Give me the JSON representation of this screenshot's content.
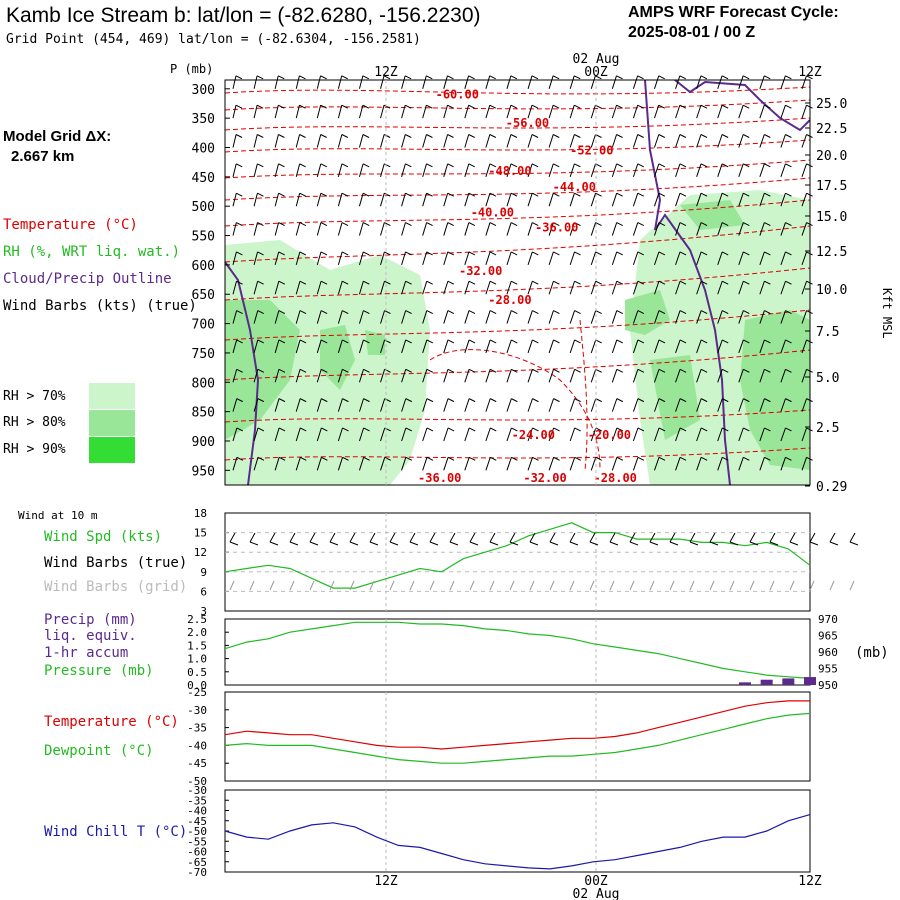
{
  "header": {
    "title": "Kamb Ice Stream b:  lat/lon = (-82.6280, -156.2230)",
    "cycle_label": "AMPS WRF Forecast Cycle:",
    "cycle_value": "2025-08-01 / 00  Z",
    "grid_point": "Grid Point (454, 469) lat/lon = (-82.6304, -156.2581)",
    "model_grid_label": "Model Grid ΔX:",
    "model_grid_value": "2.667 km"
  },
  "legend": {
    "temperature": "Temperature (°C)",
    "rh": "RH (%, WRT liq. wat.)",
    "cloud": "Cloud/Precip Outline",
    "wind": "Wind Barbs (kts) (true)",
    "rh70": "RH > 70%",
    "rh80": "RH > 80%",
    "rh90": "RH > 90%"
  },
  "colors": {
    "rh70": "#ccf5cc",
    "rh80": "#99e699",
    "rh90": "#33dd33",
    "temperature": "#dd0000",
    "green": "#22bb22",
    "purple": "#5b2a8c",
    "blue": "#1a1aaa"
  },
  "time_axis": {
    "top_labels": [
      "12Z",
      "00Z",
      "12Z"
    ],
    "date_label": "02 Aug",
    "bottom_labels": [
      "12Z",
      "00Z",
      "12Z"
    ]
  },
  "panels": {
    "wind10m_title": "Wind at 10 m",
    "wind_spd": "Wind Spd (kts)",
    "wind_true": "Wind Barbs (true)",
    "wind_grid": "Wind Barbs (grid)",
    "precip1": "Precip (mm)",
    "precip2": "liq. equiv.",
    "precip3": "1-hr accum",
    "pressure": "Pressure (mb)",
    "pressure_unit": "(mb)",
    "temp": "Temperature (°C)",
    "dew": "Dewpoint (°C)",
    "chill": "Wind Chill T (°C)"
  },
  "chart_data": [
    {
      "type": "heatmap",
      "xlabel": "",
      "ylabel": "P (mb)",
      "y2label": "Kft MSL",
      "y_ticks_mb": [
        300,
        350,
        400,
        450,
        500,
        550,
        600,
        650,
        700,
        750,
        800,
        850,
        900,
        950
      ],
      "y2_ticks_kft": [
        "25.0",
        "22.5",
        "20.0",
        "17.5",
        "15.0",
        "12.5",
        "10.0",
        "7.5",
        "5.0",
        "2.5",
        "0.29"
      ],
      "x_ticks": [
        "12Z",
        "00Z",
        "12Z"
      ],
      "temperature_contour_labels": [
        {
          "label": "-60.00",
          "time_frac": 0.36,
          "p_mb": 310
        },
        {
          "label": "-56.00",
          "time_frac": 0.48,
          "p_mb": 358
        },
        {
          "label": "-52.00",
          "time_frac": 0.59,
          "p_mb": 405
        },
        {
          "label": "-48.00",
          "time_frac": 0.45,
          "p_mb": 440
        },
        {
          "label": "-44.00",
          "time_frac": 0.56,
          "p_mb": 467
        },
        {
          "label": "-40.00",
          "time_frac": 0.42,
          "p_mb": 511
        },
        {
          "label": "-36.00",
          "time_frac": 0.53,
          "p_mb": 536
        },
        {
          "label": "-32.00",
          "time_frac": 0.4,
          "p_mb": 610
        },
        {
          "label": "-28.00",
          "time_frac": 0.45,
          "p_mb": 660
        },
        {
          "label": "-24.00",
          "time_frac": 0.49,
          "p_mb": 890
        },
        {
          "label": "-20.00",
          "time_frac": 0.62,
          "p_mb": 890
        },
        {
          "label": "-36.00",
          "time_frac": 0.33,
          "p_mb": 963
        },
        {
          "label": "-32.00",
          "time_frac": 0.51,
          "p_mb": 963
        },
        {
          "label": "-28.00",
          "time_frac": 0.63,
          "p_mb": 963
        }
      ]
    },
    {
      "type": "line",
      "title": "Wind at 10 m",
      "ylabel": "Wind Spd (kts)",
      "ylim": [
        3,
        18
      ],
      "y_ticks": [
        3,
        6,
        9,
        12,
        15,
        18
      ],
      "series": [
        {
          "name": "Wind Spd (kts)",
          "values": [
            9,
            9.5,
            10,
            9.5,
            8,
            6.5,
            6.5,
            7.5,
            8.5,
            9.5,
            9,
            11,
            12,
            13,
            14.5,
            15.5,
            16.5,
            15,
            15,
            14,
            14,
            14,
            13.5,
            13.5,
            13,
            13.5,
            12.5,
            10
          ]
        }
      ]
    },
    {
      "type": "line",
      "ylabel": "Precip (mm)",
      "ylim": [
        0.0,
        2.5
      ],
      "y_ticks": [
        "0.0",
        "0.5",
        "1.0",
        "1.5",
        "2.0",
        "2.5"
      ],
      "y2_ticks": [
        "950",
        "955",
        "960",
        "965",
        "970"
      ],
      "series": [
        {
          "name": "Pressure (mb)",
          "values": [
            961,
            963,
            964,
            966,
            967,
            968,
            969,
            969,
            969,
            968.5,
            968.5,
            968,
            967,
            966.5,
            965.5,
            965,
            964,
            962.5,
            961.5,
            960.5,
            959.5,
            958,
            956.5,
            955,
            954,
            953,
            952.5,
            952
          ]
        },
        {
          "name": "Precip (mm)",
          "values": [
            0,
            0,
            0,
            0,
            0,
            0,
            0,
            0,
            0,
            0,
            0,
            0,
            0,
            0,
            0,
            0,
            0,
            0,
            0,
            0,
            0,
            0,
            0,
            0,
            0.1,
            0.2,
            0.25,
            0.3
          ]
        }
      ]
    },
    {
      "type": "line",
      "ylim": [
        -50,
        -25
      ],
      "y_ticks": [
        -25,
        -30,
        -35,
        -40,
        -45,
        -50
      ],
      "series": [
        {
          "name": "Temperature (°C)",
          "values": [
            -37,
            -36,
            -36.5,
            -37,
            -37,
            -38,
            -39,
            -40,
            -40.5,
            -40.5,
            -41,
            -40.5,
            -40,
            -39.5,
            -39,
            -38.5,
            -38,
            -38,
            -37.5,
            -36.5,
            -35,
            -33.5,
            -32,
            -30.5,
            -29,
            -28,
            -27.5,
            -27.5
          ]
        },
        {
          "name": "Dewpoint (°C)",
          "values": [
            -40,
            -39.5,
            -40,
            -40,
            -40,
            -41,
            -42,
            -43,
            -44,
            -44.5,
            -45,
            -45,
            -44.5,
            -44,
            -43.5,
            -43,
            -43,
            -42.5,
            -42,
            -41,
            -40,
            -38.5,
            -37,
            -35.5,
            -34,
            -32.5,
            -31.5,
            -31
          ]
        }
      ]
    },
    {
      "type": "line",
      "ylim": [
        -70,
        -30
      ],
      "y_ticks": [
        -30,
        -35,
        -40,
        -45,
        -50,
        -55,
        -60,
        -65,
        -70
      ],
      "series": [
        {
          "name": "Wind Chill T (°C)",
          "values": [
            -50,
            -53,
            -54,
            -50,
            -47,
            -46,
            -48,
            -53,
            -57,
            -58,
            -61,
            -64,
            -66,
            -67,
            -68,
            -68.5,
            -67,
            -65,
            -64,
            -62,
            -60,
            -58,
            -55,
            -53,
            -53,
            -50,
            -45,
            -42
          ]
        }
      ]
    }
  ]
}
